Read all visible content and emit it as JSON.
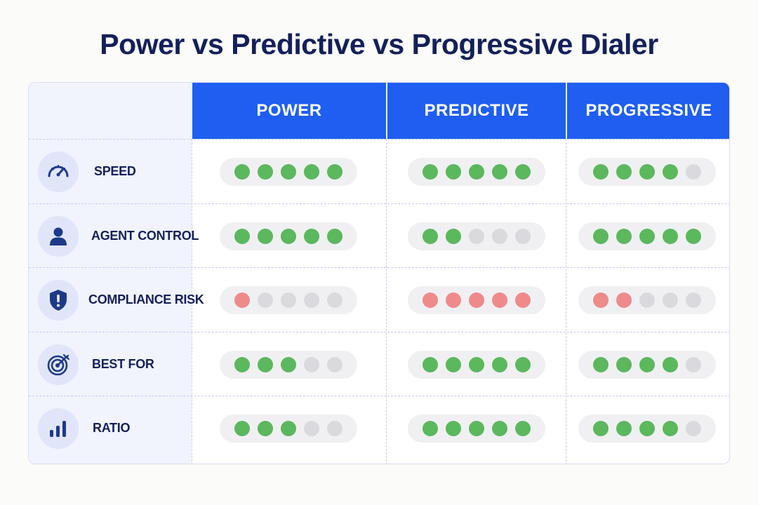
{
  "title": "Power vs Predictive vs Progressive Dialer",
  "columns": [
    "POWER",
    "PREDICTIVE",
    "PROGRESSIVE"
  ],
  "colors": {
    "header_bg": "#1f5ef0",
    "title": "#14205a",
    "filled_positive": "#5bb85d",
    "filled_negative": "#ef8a8a",
    "empty": "#dadade"
  },
  "rows": [
    {
      "label": "SPEED",
      "icon": "speedometer-icon",
      "kind": "positive",
      "ratings": [
        5,
        5,
        4
      ]
    },
    {
      "label": "AGENT CONTROL",
      "icon": "user-icon",
      "kind": "positive",
      "ratings": [
        5,
        2,
        5
      ]
    },
    {
      "label": "COMPLIANCE RISK",
      "icon": "shield-alert-icon",
      "kind": "negative",
      "ratings": [
        1,
        5,
        2
      ]
    },
    {
      "label": "BEST FOR",
      "icon": "target-icon",
      "kind": "positive",
      "ratings": [
        3,
        5,
        4
      ]
    },
    {
      "label": "RATIO",
      "icon": "bar-chart-icon",
      "kind": "positive",
      "ratings": [
        3,
        5,
        4
      ]
    }
  ],
  "max_rating": 5
}
